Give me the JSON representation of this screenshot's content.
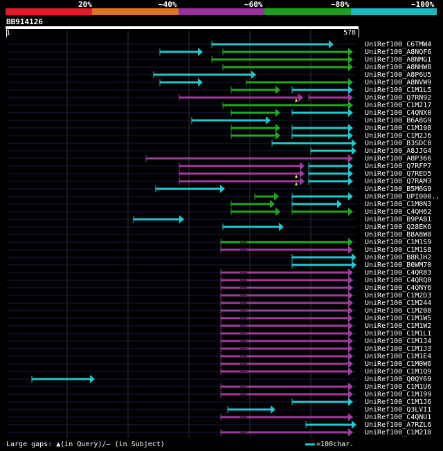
{
  "legend": {
    "segments": [
      {
        "color": "#e8182a",
        "label": "20%"
      },
      {
        "color": "#e07520",
        "label": "~40%"
      },
      {
        "color": "#9b2f9b",
        "label": "~60%"
      },
      {
        "color": "#1aa01a",
        "label": "~80%"
      },
      {
        "color": "#1ab8c0",
        "label": "~100%"
      }
    ]
  },
  "query": {
    "id": "BB914126",
    "start": "1",
    "end": "578"
  },
  "hits": [
    {
      "name": "UniRef100_C6TMW4"
    },
    {
      "name": "UniRef100_A8NQF6"
    },
    {
      "name": "UniRef100_A8NMG1"
    },
    {
      "name": "UniRef100_A8NHW8"
    },
    {
      "name": "UniRef100_A8P6U5"
    },
    {
      "name": "UniRef100_A8NVW9"
    },
    {
      "name": "UniRef100_C1M1L5"
    },
    {
      "name": "UniRef100_Q7RN92"
    },
    {
      "name": "UniRef100_C1M217"
    },
    {
      "name": "UniRef100_C4QNX0"
    },
    {
      "name": "UniRef100_B6A8G9"
    },
    {
      "name": "UniRef100_C1M198"
    },
    {
      "name": "UniRef100_C1M2J6"
    },
    {
      "name": "UniRef100_B3SDC0"
    },
    {
      "name": "UniRef100_A8JJG4"
    },
    {
      "name": "UniRef100_A8P366"
    },
    {
      "name": "UniRef100_Q7RFP7"
    },
    {
      "name": "UniRef100_Q7RED5"
    },
    {
      "name": "UniRef100_Q7RAM3"
    },
    {
      "name": "UniRef100_B5M6G9"
    },
    {
      "name": "UniRef100_UPI000.."
    },
    {
      "name": "UniRef100_C1M0N3"
    },
    {
      "name": "UniRef100_C4QH62"
    },
    {
      "name": "UniRef100_B9PAB1"
    },
    {
      "name": "UniRef100_Q28EK6"
    },
    {
      "name": "UniRef100_B8A8W0"
    },
    {
      "name": "UniRef100_C1M1S9"
    },
    {
      "name": "UniRef100_C1M1S8"
    },
    {
      "name": "UniRef100_B8RJH2"
    },
    {
      "name": "UniRef100_B0WM70"
    },
    {
      "name": "UniRef100_C4QR83"
    },
    {
      "name": "UniRef100_C4QRQ0"
    },
    {
      "name": "UniRef100_C4QNY6"
    },
    {
      "name": "UniRef100_C1M2D3"
    },
    {
      "name": "UniRef100_C1M244"
    },
    {
      "name": "UniRef100_C1M208"
    },
    {
      "name": "UniRef100_C1M1W5"
    },
    {
      "name": "UniRef100_C1M1W2"
    },
    {
      "name": "UniRef100_C1M1L1"
    },
    {
      "name": "UniRef100_C1M1J4"
    },
    {
      "name": "UniRef100_C1M1J3"
    },
    {
      "name": "UniRef100_C1M1E4"
    },
    {
      "name": "UniRef100_C1M0W6"
    },
    {
      "name": "UniRef100_C1M1Q9"
    },
    {
      "name": "UniRef100_Q0QY69"
    },
    {
      "name": "UniRef100_C1M1U6"
    },
    {
      "name": "UniRef100_C1M199"
    },
    {
      "name": "UniRef100_C1M1J6"
    },
    {
      "name": "UniRef100_Q3LVI1"
    },
    {
      "name": "UniRef100_C4QNU1"
    },
    {
      "name": "UniRef100_A7RZL6"
    },
    {
      "name": "UniRef100_C1M210"
    }
  ],
  "footer": {
    "legend_text": "Large gaps: ▲(in Query)/— (in Subject)",
    "scale_text": "=100char."
  }
}
